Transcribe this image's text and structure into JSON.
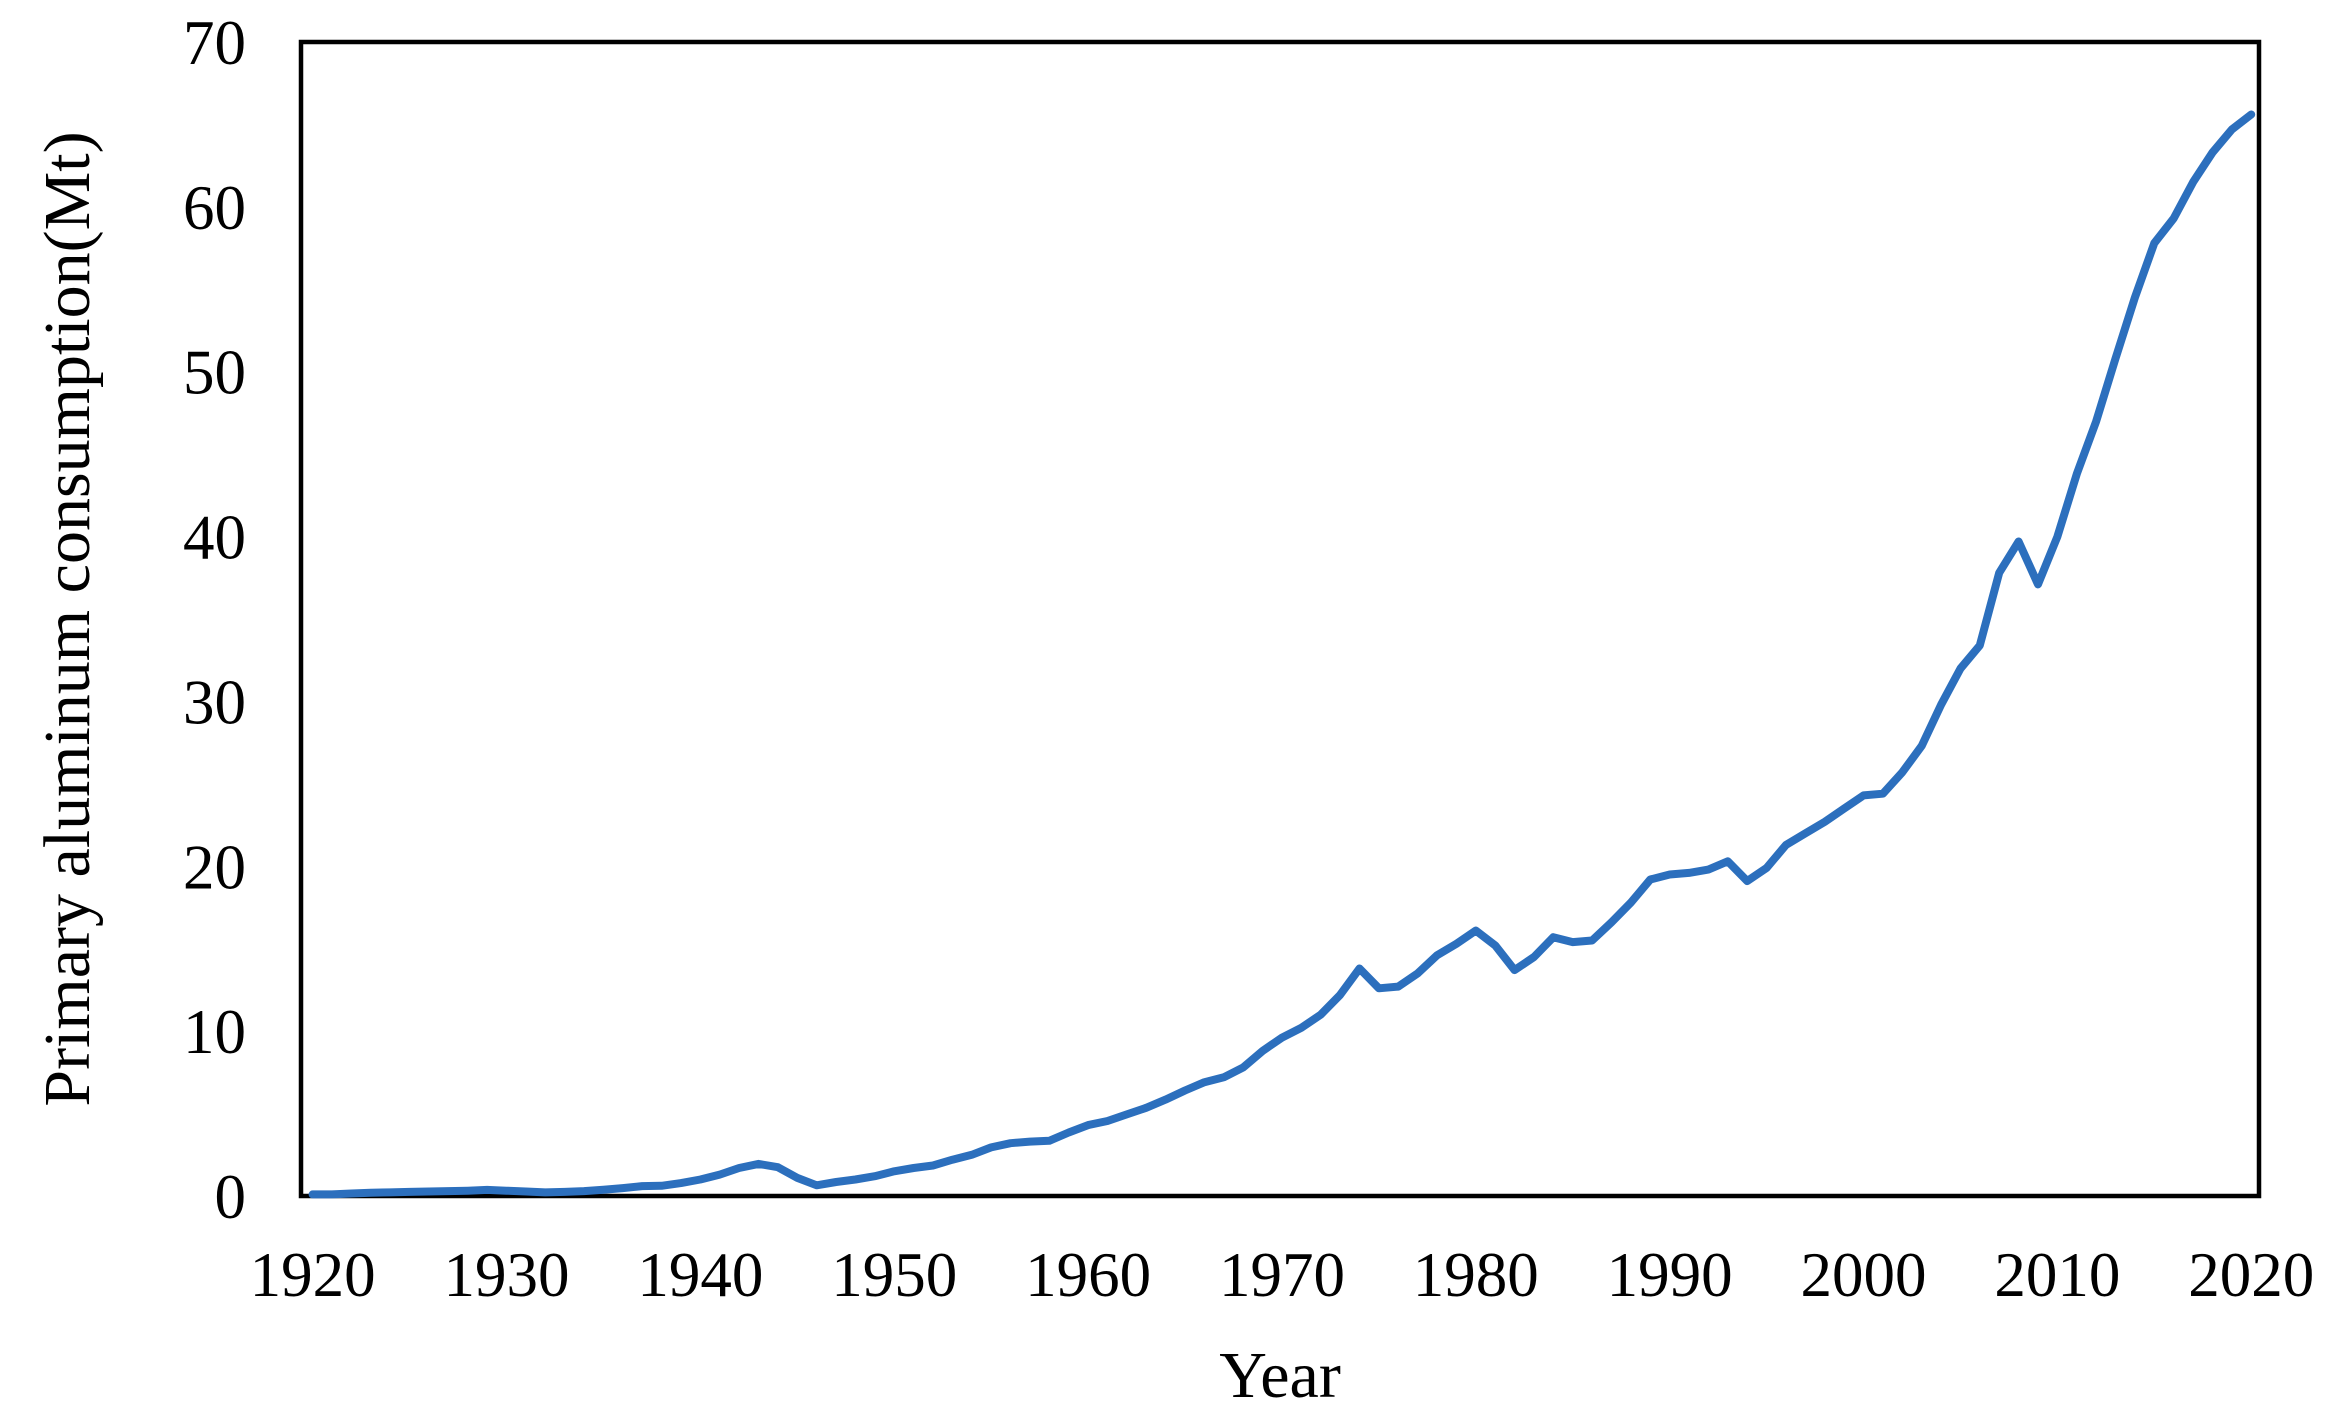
{
  "figure": {
    "x_axis_title": "Year",
    "y_axis_title": "Primary aluminum consumption(Mt)"
  },
  "chart_data": {
    "type": "line",
    "title": "",
    "xlabel": "Year",
    "ylabel": "Primary aluminum consumption(Mt)",
    "xlim": [
      1919.4,
      2020.4
    ],
    "ylim": [
      0,
      70
    ],
    "xticks": [
      1920,
      1930,
      1940,
      1950,
      1960,
      1970,
      1980,
      1990,
      2000,
      2010,
      2020
    ],
    "yticks": [
      0,
      10,
      20,
      30,
      40,
      50,
      60,
      70
    ],
    "grid": false,
    "legend_position": "none",
    "line_color": "#2c6fbd",
    "border_color": "#000000",
    "background_color": "#ffffff",
    "x": [
      1920,
      1921,
      1922,
      1923,
      1924,
      1925,
      1926,
      1927,
      1928,
      1929,
      1930,
      1931,
      1932,
      1933,
      1934,
      1935,
      1936,
      1937,
      1938,
      1939,
      1940,
      1941,
      1942,
      1943,
      1944,
      1945,
      1946,
      1947,
      1948,
      1949,
      1950,
      1951,
      1952,
      1953,
      1954,
      1955,
      1956,
      1957,
      1958,
      1959,
      1960,
      1961,
      1962,
      1963,
      1964,
      1965,
      1966,
      1967,
      1968,
      1969,
      1970,
      1971,
      1972,
      1973,
      1974,
      1975,
      1976,
      1977,
      1978,
      1979,
      1980,
      1981,
      1982,
      1983,
      1984,
      1985,
      1986,
      1987,
      1988,
      1989,
      1990,
      1991,
      1992,
      1993,
      1994,
      1995,
      1996,
      1997,
      1998,
      1999,
      2000,
      2001,
      2002,
      2003,
      2004,
      2005,
      2006,
      2007,
      2008,
      2009,
      2010,
      2011,
      2012,
      2013,
      2014,
      2015,
      2016,
      2017,
      2018,
      2019,
      2020
    ],
    "series": [
      {
        "name": "Primary aluminum consumption (Mt)",
        "values": [
          0.1,
          0.1,
          0.15,
          0.2,
          0.22,
          0.25,
          0.27,
          0.3,
          0.32,
          0.37,
          0.32,
          0.27,
          0.22,
          0.25,
          0.3,
          0.38,
          0.48,
          0.6,
          0.62,
          0.78,
          1.0,
          1.3,
          1.7,
          1.95,
          1.75,
          1.1,
          0.65,
          0.85,
          1.0,
          1.2,
          1.5,
          1.7,
          1.85,
          2.2,
          2.5,
          2.95,
          3.2,
          3.3,
          3.35,
          3.85,
          4.3,
          4.55,
          4.95,
          5.35,
          5.85,
          6.4,
          6.9,
          7.2,
          7.8,
          8.8,
          9.6,
          10.2,
          11.0,
          12.2,
          13.8,
          12.6,
          12.7,
          13.5,
          14.6,
          15.3,
          16.1,
          15.2,
          13.7,
          14.5,
          15.7,
          15.4,
          15.5,
          16.6,
          17.8,
          19.2,
          19.5,
          19.6,
          19.8,
          20.3,
          19.1,
          19.9,
          21.3,
          22.0,
          22.7,
          23.5,
          24.3,
          24.4,
          25.7,
          27.3,
          29.8,
          32.0,
          33.4,
          37.8,
          39.7,
          37.1,
          40.0,
          43.8,
          47.0,
          50.8,
          54.5,
          57.8,
          59.3,
          61.5,
          63.3,
          64.7,
          65.6
        ]
      }
    ]
  }
}
